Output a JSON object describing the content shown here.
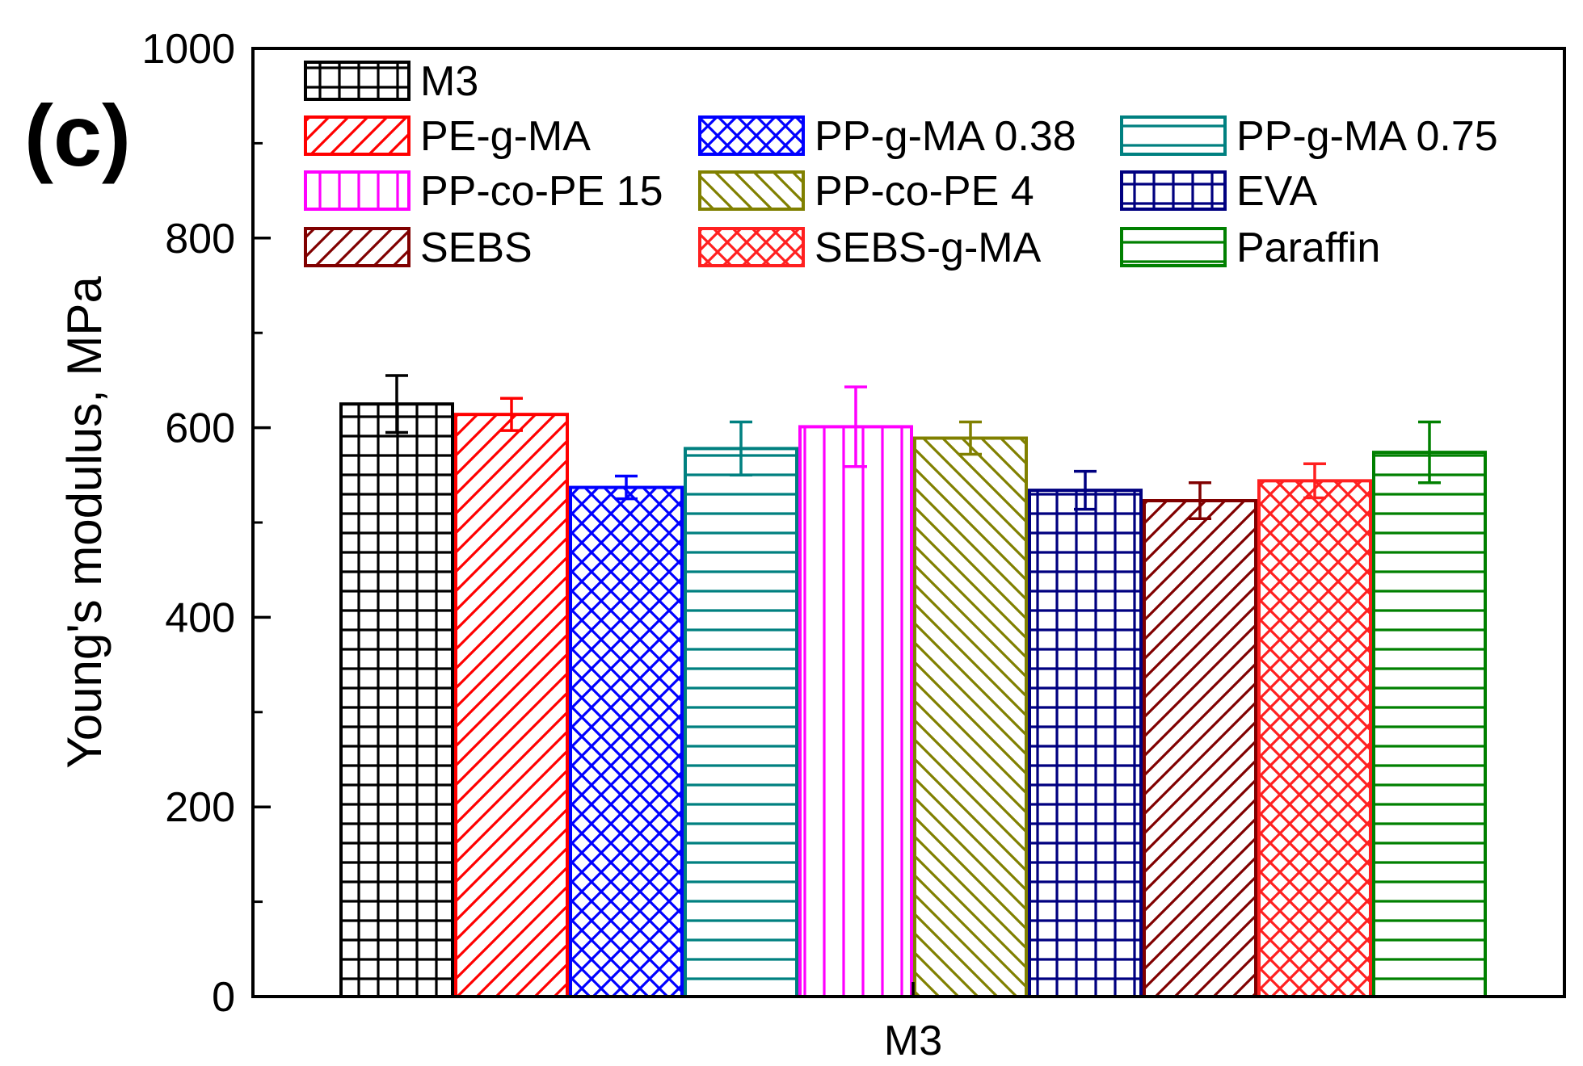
{
  "panel_label": "(c)",
  "chart_data": {
    "type": "bar",
    "title": "",
    "xlabel": "",
    "ylabel": "Young's modulus, MPa",
    "categories": [
      "M3"
    ],
    "ylim": [
      0,
      1000
    ],
    "yticks": [
      0,
      200,
      400,
      600,
      800,
      1000
    ],
    "ytick_labels": [
      "0",
      "200",
      "400",
      "600",
      "800",
      "1000"
    ],
    "legend_position": "top",
    "series": [
      {
        "name": "M3",
        "values": [
          625
        ],
        "error": [
          30
        ],
        "color": "#000000",
        "pattern": "grid"
      },
      {
        "name": "PE-g-MA",
        "values": [
          614
        ],
        "error": [
          17
        ],
        "color": "#ff0000",
        "pattern": "diag-up"
      },
      {
        "name": "PP-g-MA 0.38",
        "values": [
          537
        ],
        "error": [
          12
        ],
        "color": "#0000ff",
        "pattern": "crosshatch"
      },
      {
        "name": "PP-g-MA 0.75",
        "values": [
          578
        ],
        "error": [
          28
        ],
        "color": "#008080",
        "pattern": "horizontal"
      },
      {
        "name": "PP-co-PE 15",
        "values": [
          601
        ],
        "error": [
          42
        ],
        "color": "#ff00ff",
        "pattern": "vertical"
      },
      {
        "name": "PP-co-PE 4",
        "values": [
          589
        ],
        "error": [
          17
        ],
        "color": "#808000",
        "pattern": "diag-down"
      },
      {
        "name": "EVA",
        "values": [
          534
        ],
        "error": [
          20
        ],
        "color": "#000080",
        "pattern": "grid"
      },
      {
        "name": "SEBS",
        "values": [
          523
        ],
        "error": [
          19
        ],
        "color": "#800000",
        "pattern": "diag-up"
      },
      {
        "name": "SEBS-g-MA",
        "values": [
          544
        ],
        "error": [
          18
        ],
        "color": "#ff2020",
        "pattern": "crosshatch"
      },
      {
        "name": "Paraffin",
        "values": [
          574
        ],
        "error": [
          32
        ],
        "color": "#008000",
        "pattern": "horizontal"
      }
    ]
  }
}
